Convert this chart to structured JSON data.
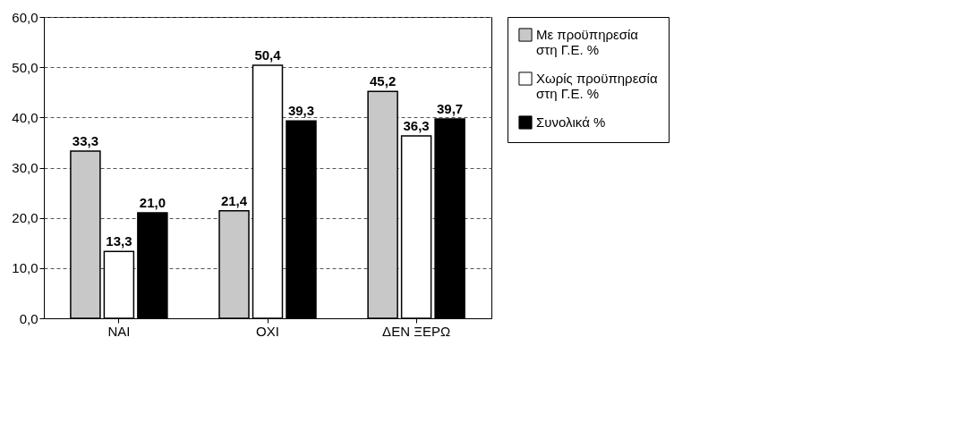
{
  "chart_data": {
    "type": "bar",
    "categories": [
      "ΝΑΙ",
      "ΟΧΙ",
      "ΔΕΝ ΞΕΡΩ"
    ],
    "series": [
      {
        "name": "Με προϋπηρεσία στη Γ.Ε. %",
        "color": "#c8c8c8",
        "values": [
          33.3,
          21.4,
          45.2
        ],
        "value_labels": [
          "33,3",
          "21,4",
          "45,2"
        ]
      },
      {
        "name": "Χωρίς προϋπηρεσία στη Γ.Ε. %",
        "color": "#ffffff",
        "values": [
          13.3,
          50.4,
          36.3
        ],
        "value_labels": [
          "13,3",
          "50,4",
          "36,3"
        ]
      },
      {
        "name": "Συνολικά %",
        "color": "#000000",
        "values": [
          21.0,
          39.3,
          39.7
        ],
        "value_labels": [
          "21,0",
          "39,3",
          "39,7"
        ]
      }
    ],
    "ylim": [
      0,
      60
    ],
    "yticks": [
      {
        "value": 0,
        "label": "0,0"
      },
      {
        "value": 10,
        "label": "10,0"
      },
      {
        "value": 20,
        "label": "20,0"
      },
      {
        "value": 30,
        "label": "30,0"
      },
      {
        "value": 40,
        "label": "40,0"
      },
      {
        "value": 50,
        "label": "50,0"
      },
      {
        "value": 60,
        "label": "60,0"
      }
    ],
    "grid": "y",
    "legend": "right"
  }
}
